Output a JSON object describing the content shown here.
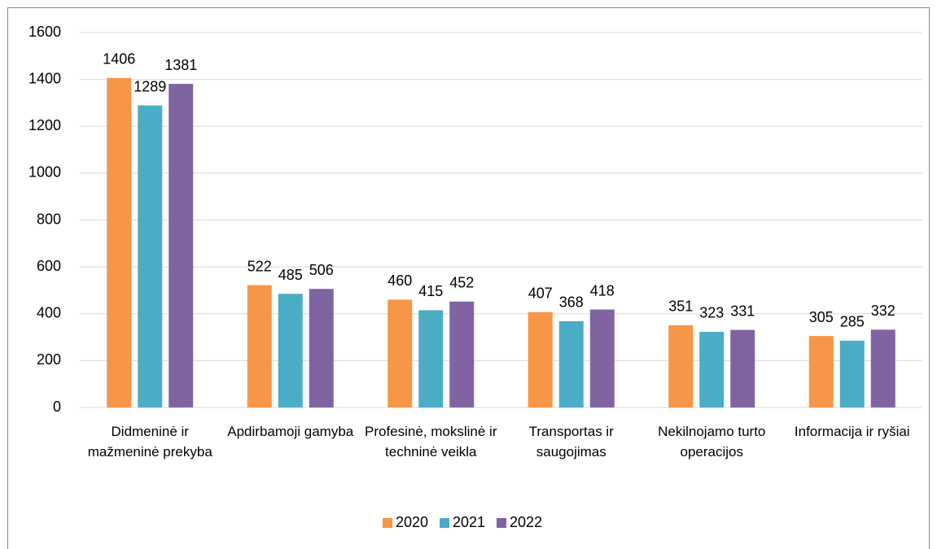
{
  "chart_data": {
    "type": "bar",
    "categories": [
      "Didmeninė ir mažmeninė prekyba",
      "Apdirbamoji gamyba",
      "Profesinė, mokslinė ir techninė veikla",
      "Transportas ir saugojimas",
      "Nekilnojamo turto operacijos",
      "Informacija ir ryšiai"
    ],
    "series": [
      {
        "name": "2020",
        "color": "#f79646",
        "values": [
          1406,
          522,
          460,
          407,
          351,
          305
        ]
      },
      {
        "name": "2021",
        "color": "#4bacc6",
        "values": [
          1289,
          485,
          415,
          368,
          323,
          285
        ]
      },
      {
        "name": "2022",
        "color": "#8064a2",
        "values": [
          1381,
          506,
          452,
          418,
          331,
          332
        ]
      }
    ],
    "ylim": [
      0,
      1600
    ],
    "yticks": [
      0,
      200,
      400,
      600,
      800,
      1000,
      1200,
      1400,
      1600
    ],
    "grid": true,
    "legend": "bottom"
  }
}
